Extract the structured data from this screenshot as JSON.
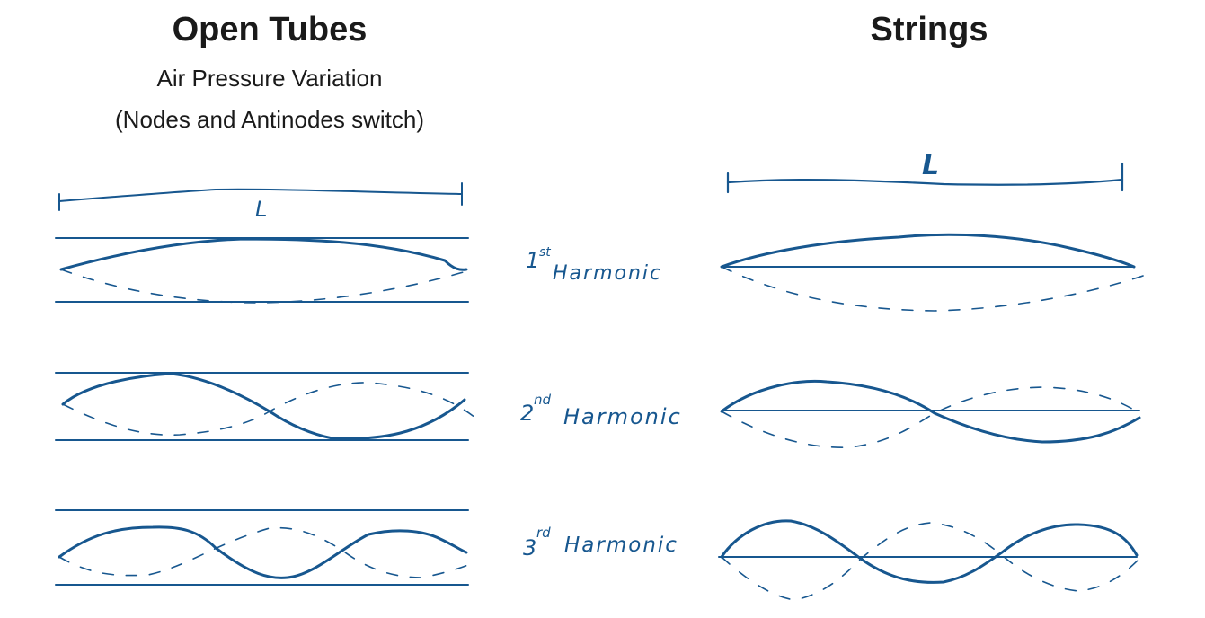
{
  "headings": {
    "open_tubes": "Open Tubes",
    "strings": "Strings",
    "subtitle_1": "Air Pressure Variation",
    "subtitle_2": "(Nodes and Antinodes switch)"
  },
  "length_label": "L",
  "harmonics": [
    {
      "num": "1",
      "suffix": "st",
      "word": "Harmonic"
    },
    {
      "num": "2",
      "suffix": "nd",
      "word": "Harmonic"
    },
    {
      "num": "3",
      "suffix": "rd",
      "word": "Harmonic"
    }
  ],
  "colors": {
    "ink": "#17578f",
    "text": "#1a1a1a"
  }
}
